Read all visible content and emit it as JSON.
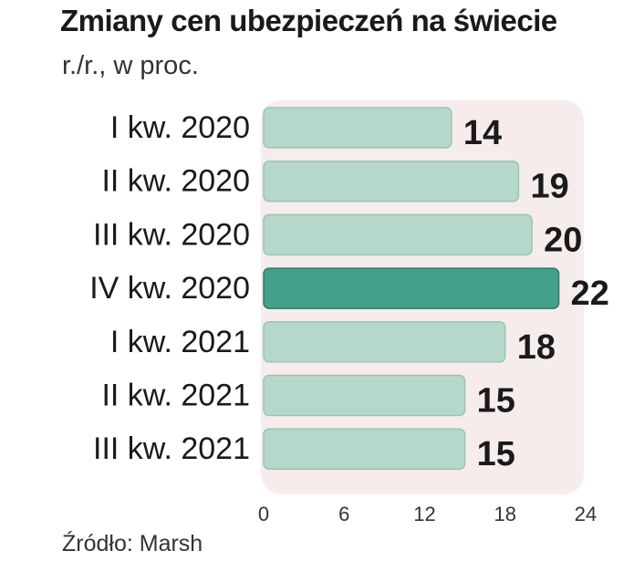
{
  "chart_data": {
    "type": "bar",
    "orientation": "horizontal",
    "title": "Zmiany cen ubezpieczeń na świecie",
    "subtitle": "r./r., w proc.",
    "source": "Źródło: Marsh",
    "categories": [
      "I kw. 2020",
      "II kw. 2020",
      "III kw. 2020",
      "IV kw. 2020",
      "I kw. 2021",
      "II kw. 2021",
      "III kw. 2021"
    ],
    "values": [
      14,
      19,
      20,
      22,
      18,
      15,
      15
    ],
    "value_labels": [
      "14",
      "19",
      "20",
      "22",
      "18",
      "15",
      "15"
    ],
    "highlight_index": 3,
    "xlim": [
      0,
      24
    ],
    "xticks": [
      0,
      6,
      12,
      18,
      24
    ],
    "xtick_labels": [
      "0",
      "6",
      "12",
      "18",
      "24"
    ],
    "grid": false,
    "legend": "none",
    "colors": {
      "bar": "#b5d8cb",
      "bar_highlight": "#44a08b",
      "bar_stroke": "#ffffff",
      "plot_background": "#f7ecec",
      "text": "#1a1a1a"
    }
  }
}
